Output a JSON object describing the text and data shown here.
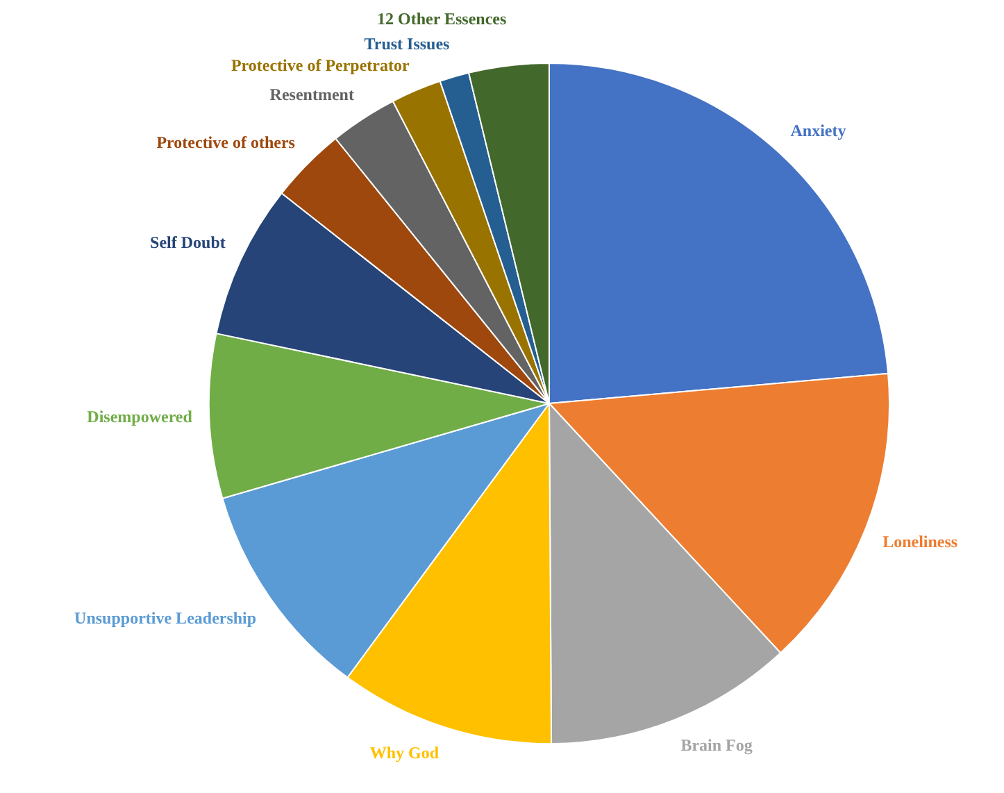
{
  "chart_data": {
    "type": "pie",
    "categories": [
      "Anxiety",
      "Loneliness",
      "Brain Fog",
      "Why God",
      "Unsupportive Leadership",
      "Disempowered",
      "Self Doubt",
      "Protective of others",
      "Resentment",
      "Protective of Perpetrator",
      "Trust Issues",
      "12 Other Essences"
    ],
    "values": [
      23.6,
      14.5,
      11.8,
      10.2,
      10.4,
      7.8,
      7.3,
      3.6,
      3.2,
      2.4,
      1.4,
      3.8
    ],
    "colors": [
      "#4472c4",
      "#ed7d31",
      "#a5a5a5",
      "#ffc000",
      "#5b9bd5",
      "#70ad47",
      "#264478",
      "#9e480e",
      "#636363",
      "#997300",
      "#255e91",
      "#43682b"
    ]
  }
}
